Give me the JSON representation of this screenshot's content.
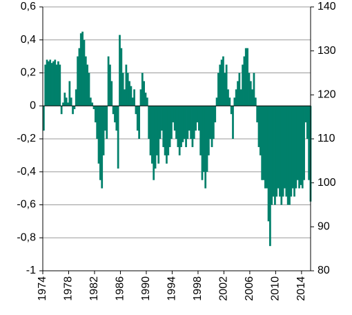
{
  "chart_data": {
    "type": "bar",
    "color": "#00806b",
    "grid": true,
    "x": [
      1974,
      1974.25,
      1974.5,
      1974.75,
      1975,
      1975.25,
      1975.5,
      1975.75,
      1976,
      1976.25,
      1976.5,
      1976.75,
      1977,
      1977.25,
      1977.5,
      1977.75,
      1978,
      1978.25,
      1978.5,
      1978.75,
      1979,
      1979.25,
      1979.5,
      1979.75,
      1980,
      1980.25,
      1980.5,
      1980.75,
      1981,
      1981.25,
      1981.5,
      1981.75,
      1982,
      1982.25,
      1982.5,
      1982.75,
      1983,
      1983.25,
      1983.5,
      1983.75,
      1984,
      1984.25,
      1984.5,
      1984.75,
      1985,
      1985.25,
      1985.5,
      1985.75,
      1986,
      1986.25,
      1986.5,
      1986.75,
      1987,
      1987.25,
      1987.5,
      1987.75,
      1988,
      1988.25,
      1988.5,
      1988.75,
      1989,
      1989.25,
      1989.5,
      1989.75,
      1990,
      1990.25,
      1990.5,
      1990.75,
      1991,
      1991.25,
      1991.5,
      1991.75,
      1992,
      1992.25,
      1992.5,
      1992.75,
      1993,
      1993.25,
      1993.5,
      1993.75,
      1994,
      1994.25,
      1994.5,
      1994.75,
      1995,
      1995.25,
      1995.5,
      1995.75,
      1996,
      1996.25,
      1996.5,
      1996.75,
      1997,
      1997.25,
      1997.5,
      1997.75,
      1998,
      1998.25,
      1998.5,
      1998.75,
      1999,
      1999.25,
      1999.5,
      1999.75,
      2000,
      2000.25,
      2000.5,
      2000.75,
      2001,
      2001.25,
      2001.5,
      2001.75,
      2002,
      2002.25,
      2002.5,
      2002.75,
      2003,
      2003.25,
      2003.5,
      2003.75,
      2004,
      2004.25,
      2004.5,
      2004.75,
      2005,
      2005.25,
      2005.5,
      2005.75,
      2006,
      2006.25,
      2006.5,
      2006.75,
      2007,
      2007.25,
      2007.5,
      2007.75,
      2008,
      2008.25,
      2008.5,
      2008.75,
      2009,
      2009.25,
      2009.5,
      2009.75,
      2010,
      2010.25,
      2010.5,
      2010.75,
      2011,
      2011.25,
      2011.5,
      2011.75,
      2012,
      2012.25,
      2012.5,
      2012.75,
      2013,
      2013.25,
      2013.5,
      2013.75,
      2014,
      2014.25,
      2014.5,
      2014.75,
      2015,
      2015.25
    ],
    "values": [
      -0.15,
      0.25,
      0.28,
      0.27,
      0.28,
      0.26,
      0.27,
      0.28,
      0.25,
      0.27,
      0.25,
      -0.05,
      0.02,
      0.08,
      0.05,
      0.02,
      0.15,
      0.05,
      -0.05,
      -0.02,
      0.1,
      0.3,
      0.35,
      0.44,
      0.45,
      0.4,
      0.3,
      0.25,
      0.2,
      0.05,
      0.02,
      -0.02,
      -0.1,
      -0.2,
      -0.35,
      -0.45,
      -0.5,
      -0.3,
      -0.15,
      -0.2,
      0.3,
      0.25,
      0.15,
      -0.05,
      -0.1,
      -0.15,
      -0.38,
      0.43,
      0.35,
      0.2,
      0.1,
      0.25,
      0.2,
      0.15,
      0.12,
      0.05,
      0.1,
      -0.05,
      -0.15,
      -0.2,
      0.1,
      0.2,
      0.15,
      0.08,
      0.05,
      -0.2,
      -0.3,
      -0.35,
      -0.45,
      -0.38,
      -0.3,
      -0.35,
      -0.2,
      -0.15,
      -0.25,
      -0.3,
      -0.35,
      -0.3,
      -0.25,
      -0.2,
      -0.1,
      -0.15,
      -0.2,
      -0.25,
      -0.3,
      -0.25,
      -0.22,
      -0.2,
      -0.25,
      -0.2,
      -0.15,
      -0.2,
      -0.25,
      -0.2,
      -0.15,
      -0.1,
      -0.15,
      -0.3,
      -0.45,
      -0.4,
      -0.5,
      -0.4,
      -0.3,
      -0.2,
      -0.25,
      -0.2,
      -0.1,
      0.05,
      0.2,
      0.25,
      0.28,
      0.3,
      0.2,
      0.25,
      0.1,
      0.05,
      -0.05,
      -0.2,
      0.05,
      0.1,
      0.15,
      0.2,
      0.1,
      0.25,
      0.3,
      0.35,
      0.35,
      0.2,
      0.15,
      0.1,
      0.2,
      0.05,
      -0.1,
      -0.25,
      -0.3,
      -0.45,
      -0.45,
      -0.5,
      -0.5,
      -0.7,
      -0.85,
      -0.6,
      -0.55,
      -0.6,
      -0.55,
      -0.5,
      -0.55,
      -0.6,
      -0.55,
      -0.5,
      -0.55,
      -0.6,
      -0.6,
      -0.55,
      -0.5,
      -0.55,
      -0.5,
      -0.45,
      -0.5,
      -0.48,
      -0.5,
      -0.45,
      -0.1,
      -0.2,
      -0.45,
      -0.58
    ],
    "xlim": [
      1974,
      2015.4
    ],
    "xticks": [
      1974,
      1978,
      1982,
      1986,
      1990,
      1994,
      1998,
      2002,
      2006,
      2010,
      2014
    ],
    "ylim": [
      -1,
      0.6
    ],
    "yticks": [
      {
        "value": -1,
        "label": "-1"
      },
      {
        "value": -0.8,
        "label": "-0,8"
      },
      {
        "value": -0.6,
        "label": "-0,6"
      },
      {
        "value": -0.4,
        "label": "-0,4"
      },
      {
        "value": -0.2,
        "label": "-0,2"
      },
      0,
      {
        "value": 0.2,
        "label": "0,2"
      },
      {
        "value": 0.4,
        "label": "0,4"
      },
      {
        "value": 0.6,
        "label": "0,6"
      }
    ],
    "y2lim": [
      80,
      140
    ],
    "y2ticks": [
      80,
      90,
      100,
      110,
      120,
      130,
      140
    ]
  }
}
